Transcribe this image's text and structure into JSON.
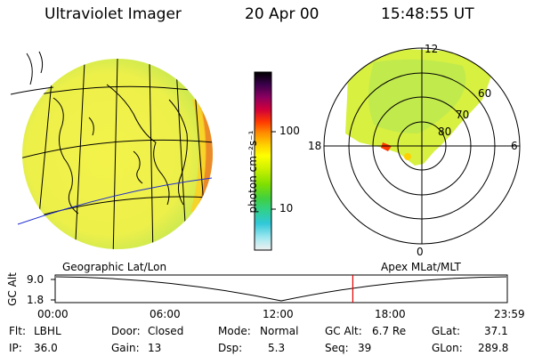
{
  "header": {
    "title": "Ultraviolet Imager",
    "date": "20 Apr 00",
    "time": "15:48:55 UT"
  },
  "colorbar": {
    "label": "photon cm⁻²s⁻¹",
    "ticks": [
      {
        "label": "100",
        "value": 100
      },
      {
        "label": "10",
        "value": 10
      }
    ],
    "colors": [
      "#000000",
      "#3a004a",
      "#8a0060",
      "#d0003a",
      "#ff3a00",
      "#ff8a00",
      "#ffd000",
      "#ffff00",
      "#c8f000",
      "#80e000",
      "#40d040",
      "#30d090",
      "#30c8d8",
      "#a0e8f0",
      "#f0f0f0"
    ]
  },
  "labels": {
    "left": "Geographic Lat/Lon",
    "right": "Apex MLat/MLT"
  },
  "polar": {
    "mlt": {
      "top": "12",
      "left": "18",
      "right": "6",
      "bottom": "0"
    },
    "lat": [
      "60",
      "70",
      "80"
    ]
  },
  "timeline": {
    "ylabel": "GC Alt",
    "yticks": [
      "9.0",
      "1.8"
    ],
    "xticks": [
      "00:00",
      "06:00",
      "12:00",
      "18:00",
      "23:59"
    ],
    "cursor_hour": 15.8
  },
  "info": {
    "flt_label": "Flt:",
    "flt_value": "LBHL",
    "ip_label": "IP:",
    "ip_value": "36.0",
    "door_label": "Door:",
    "door_value": "Closed",
    "gain_label": "Gain:",
    "gain_value": "13",
    "mode_label": "Mode:",
    "mode_value": "Normal",
    "dsp_label": "Dsp:",
    "dsp_value": "5.3",
    "gcalt_label": "GC Alt:",
    "gcalt_value": "6.7 Re",
    "seq_label": "Seq:",
    "seq_value": "39",
    "glat_label": "GLat:",
    "glat_value": "37.1",
    "glon_label": "GLon:",
    "glon_value": "289.8"
  }
}
